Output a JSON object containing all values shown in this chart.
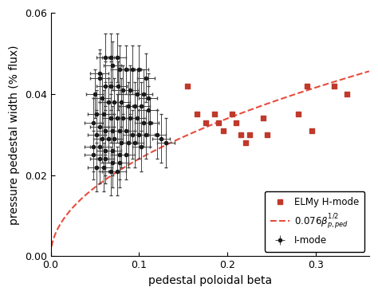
{
  "xlabel": "pedestal poloidal beta",
  "ylabel": "pressure pedestal width (% flux)",
  "xlim": [
    0.0,
    0.36
  ],
  "ylim": [
    0.0,
    0.06
  ],
  "xticks": [
    0.0,
    0.1,
    0.2,
    0.3
  ],
  "yticks": [
    0.0,
    0.02,
    0.04,
    0.06
  ],
  "fit_coeff": 0.076,
  "i_mode_color": "#1a1a1a",
  "h_mode_color": "#c0392b",
  "fit_color": "#e74c3c",
  "i_mode_points": [
    [
      0.055,
      0.045
    ],
    [
      0.062,
      0.049
    ],
    [
      0.068,
      0.049
    ],
    [
      0.075,
      0.049
    ],
    [
      0.07,
      0.047
    ],
    [
      0.078,
      0.046
    ],
    [
      0.085,
      0.046
    ],
    [
      0.092,
      0.046
    ],
    [
      0.1,
      0.046
    ],
    [
      0.108,
      0.044
    ],
    [
      0.055,
      0.044
    ],
    [
      0.062,
      0.042
    ],
    [
      0.068,
      0.042
    ],
    [
      0.076,
      0.042
    ],
    [
      0.082,
      0.041
    ],
    [
      0.09,
      0.041
    ],
    [
      0.098,
      0.04
    ],
    [
      0.105,
      0.04
    ],
    [
      0.11,
      0.039
    ],
    [
      0.05,
      0.04
    ],
    [
      0.058,
      0.039
    ],
    [
      0.065,
      0.038
    ],
    [
      0.072,
      0.038
    ],
    [
      0.08,
      0.038
    ],
    [
      0.088,
      0.037
    ],
    [
      0.095,
      0.037
    ],
    [
      0.102,
      0.037
    ],
    [
      0.11,
      0.036
    ],
    [
      0.052,
      0.035
    ],
    [
      0.06,
      0.035
    ],
    [
      0.068,
      0.034
    ],
    [
      0.075,
      0.034
    ],
    [
      0.082,
      0.034
    ],
    [
      0.09,
      0.034
    ],
    [
      0.098,
      0.034
    ],
    [
      0.105,
      0.033
    ],
    [
      0.112,
      0.033
    ],
    [
      0.048,
      0.033
    ],
    [
      0.055,
      0.032
    ],
    [
      0.062,
      0.031
    ],
    [
      0.07,
      0.031
    ],
    [
      0.078,
      0.031
    ],
    [
      0.085,
      0.031
    ],
    [
      0.092,
      0.03
    ],
    [
      0.1,
      0.03
    ],
    [
      0.108,
      0.03
    ],
    [
      0.052,
      0.03
    ],
    [
      0.058,
      0.029
    ],
    [
      0.065,
      0.029
    ],
    [
      0.072,
      0.029
    ],
    [
      0.08,
      0.028
    ],
    [
      0.088,
      0.028
    ],
    [
      0.095,
      0.028
    ],
    [
      0.102,
      0.027
    ],
    [
      0.048,
      0.027
    ],
    [
      0.055,
      0.027
    ],
    [
      0.062,
      0.026
    ],
    [
      0.07,
      0.026
    ],
    [
      0.078,
      0.025
    ],
    [
      0.085,
      0.025
    ],
    [
      0.048,
      0.025
    ],
    [
      0.055,
      0.024
    ],
    [
      0.062,
      0.024
    ],
    [
      0.07,
      0.023
    ],
    [
      0.078,
      0.023
    ],
    [
      0.052,
      0.022
    ],
    [
      0.06,
      0.022
    ],
    [
      0.068,
      0.021
    ],
    [
      0.075,
      0.021
    ],
    [
      0.12,
      0.03
    ],
    [
      0.125,
      0.029
    ],
    [
      0.13,
      0.028
    ]
  ],
  "i_mode_xerr": 0.01,
  "i_mode_yerr": 0.006,
  "h_mode_points": [
    [
      0.155,
      0.042
    ],
    [
      0.165,
      0.035
    ],
    [
      0.175,
      0.033
    ],
    [
      0.185,
      0.035
    ],
    [
      0.19,
      0.033
    ],
    [
      0.195,
      0.031
    ],
    [
      0.205,
      0.035
    ],
    [
      0.21,
      0.033
    ],
    [
      0.215,
      0.03
    ],
    [
      0.22,
      0.028
    ],
    [
      0.225,
      0.03
    ],
    [
      0.24,
      0.034
    ],
    [
      0.245,
      0.03
    ],
    [
      0.28,
      0.035
    ],
    [
      0.29,
      0.042
    ],
    [
      0.295,
      0.031
    ],
    [
      0.32,
      0.042
    ],
    [
      0.335,
      0.04
    ]
  ],
  "background_color": "#ffffff",
  "figsize": [
    4.74,
    3.7
  ],
  "dpi": 100
}
